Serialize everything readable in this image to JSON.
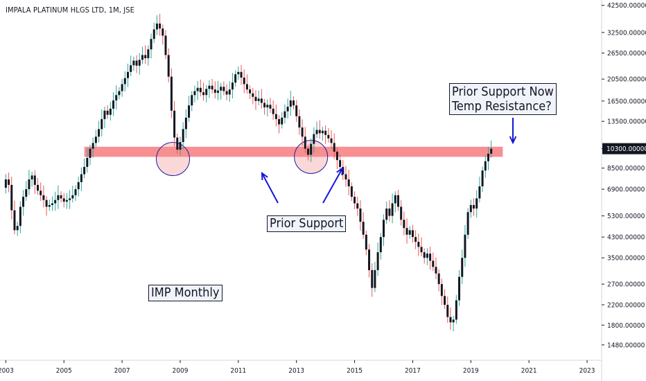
{
  "chart_data": {
    "type": "candlestick",
    "title": "IMPALA PLATINUM HLGS LTD, 1M, JSE",
    "scale": "log",
    "ylim": [
      1400,
      43000
    ],
    "x_range": [
      2002.8,
      2023.5
    ],
    "y_ticks": [
      "42500.00000",
      "32500.00000",
      "26500.00000",
      "20500.00000",
      "16500.00000",
      "13500.00000",
      "10300.00000",
      "8500.00000",
      "6900.00000",
      "5300.00000",
      "4300.00000",
      "3500.00000",
      "2700.00000",
      "2200.00000",
      "1800.00000",
      "1480.00000"
    ],
    "y_tick_values": [
      42500,
      32500,
      26500,
      20500,
      16500,
      13500,
      10300,
      8500,
      6900,
      5300,
      4300,
      3500,
      2700,
      2200,
      1800,
      1480
    ],
    "last_price_label": "10300.00000",
    "last_price": 10300,
    "x_ticks": [
      "2003",
      "2005",
      "2007",
      "2009",
      "2011",
      "2013",
      "2015",
      "2017",
      "2019",
      "2021",
      "2023"
    ],
    "x_tick_values": [
      2003,
      2005,
      2007,
      2009,
      2011,
      2013,
      2015,
      2017,
      2019,
      2021,
      2023
    ],
    "up_color": "#26a69a",
    "down_color": "#ef5350",
    "body_color": "#131722",
    "resistance_band": {
      "low": 9500,
      "high": 10500,
      "from": 2005.7,
      "to": 2020.1,
      "color": "#f77c80"
    },
    "circles": [
      {
        "x": 2008.75,
        "y": 9300
      },
      {
        "x": 2013.5,
        "y": 9500
      }
    ],
    "monthly_close": [
      [
        2002.9,
        7000
      ],
      [
        2003.0,
        7600
      ],
      [
        2003.1,
        7200
      ],
      [
        2003.2,
        5600
      ],
      [
        2003.3,
        4600
      ],
      [
        2003.4,
        4800
      ],
      [
        2003.5,
        5800
      ],
      [
        2003.6,
        6400
      ],
      [
        2003.7,
        6900
      ],
      [
        2003.8,
        7600
      ],
      [
        2003.9,
        7900
      ],
      [
        2004.0,
        7200
      ],
      [
        2004.1,
        6800
      ],
      [
        2004.2,
        6500
      ],
      [
        2004.3,
        6200
      ],
      [
        2004.4,
        5800
      ],
      [
        2004.5,
        5900
      ],
      [
        2004.6,
        6000
      ],
      [
        2004.7,
        6200
      ],
      [
        2004.8,
        6500
      ],
      [
        2004.9,
        6300
      ],
      [
        2005.0,
        6100
      ],
      [
        2005.1,
        6200
      ],
      [
        2005.2,
        6300
      ],
      [
        2005.3,
        6500
      ],
      [
        2005.4,
        6900
      ],
      [
        2005.5,
        7400
      ],
      [
        2005.6,
        8000
      ],
      [
        2005.7,
        8600
      ],
      [
        2005.8,
        9400
      ],
      [
        2005.9,
        10300
      ],
      [
        2006.0,
        10900
      ],
      [
        2006.1,
        11600
      ],
      [
        2006.2,
        12500
      ],
      [
        2006.3,
        13800
      ],
      [
        2006.4,
        15000
      ],
      [
        2006.5,
        14400
      ],
      [
        2006.6,
        15300
      ],
      [
        2006.7,
        16600
      ],
      [
        2006.8,
        17500
      ],
      [
        2006.9,
        18200
      ],
      [
        2007.0,
        19500
      ],
      [
        2007.1,
        20700
      ],
      [
        2007.2,
        22000
      ],
      [
        2007.3,
        23500
      ],
      [
        2007.4,
        24600
      ],
      [
        2007.5,
        23400
      ],
      [
        2007.6,
        24800
      ],
      [
        2007.7,
        26000
      ],
      [
        2007.8,
        25200
      ],
      [
        2007.9,
        27500
      ],
      [
        2008.0,
        30500
      ],
      [
        2008.1,
        33500
      ],
      [
        2008.2,
        35500
      ],
      [
        2008.3,
        33800
      ],
      [
        2008.4,
        31500
      ],
      [
        2008.5,
        26000
      ],
      [
        2008.6,
        21000
      ],
      [
        2008.7,
        15000
      ],
      [
        2008.8,
        11500
      ],
      [
        2008.9,
        10200
      ],
      [
        2009.0,
        11000
      ],
      [
        2009.1,
        12500
      ],
      [
        2009.2,
        14000
      ],
      [
        2009.3,
        15800
      ],
      [
        2009.4,
        17500
      ],
      [
        2009.5,
        18200
      ],
      [
        2009.6,
        18800
      ],
      [
        2009.7,
        18000
      ],
      [
        2009.8,
        17500
      ],
      [
        2009.9,
        18600
      ],
      [
        2010.0,
        19200
      ],
      [
        2010.1,
        18500
      ],
      [
        2010.2,
        17900
      ],
      [
        2010.3,
        18300
      ],
      [
        2010.4,
        19000
      ],
      [
        2010.5,
        18200
      ],
      [
        2010.6,
        17600
      ],
      [
        2010.7,
        18500
      ],
      [
        2010.8,
        19800
      ],
      [
        2010.9,
        21500
      ],
      [
        2011.0,
        22000
      ],
      [
        2011.1,
        20800
      ],
      [
        2011.2,
        19500
      ],
      [
        2011.3,
        18500
      ],
      [
        2011.4,
        17800
      ],
      [
        2011.5,
        17200
      ],
      [
        2011.6,
        16500
      ],
      [
        2011.7,
        16900
      ],
      [
        2011.8,
        16200
      ],
      [
        2011.9,
        15500
      ],
      [
        2012.0,
        15900
      ],
      [
        2012.1,
        15300
      ],
      [
        2012.2,
        14500
      ],
      [
        2012.3,
        13800
      ],
      [
        2012.4,
        13100
      ],
      [
        2012.5,
        14000
      ],
      [
        2012.6,
        14900
      ],
      [
        2012.7,
        15600
      ],
      [
        2012.8,
        16600
      ],
      [
        2012.9,
        15800
      ],
      [
        2013.0,
        14200
      ],
      [
        2013.1,
        12700
      ],
      [
        2013.2,
        11600
      ],
      [
        2013.3,
        10300
      ],
      [
        2013.4,
        9700
      ],
      [
        2013.5,
        10800
      ],
      [
        2013.6,
        11900
      ],
      [
        2013.7,
        12400
      ],
      [
        2013.8,
        12000
      ],
      [
        2013.9,
        12300
      ],
      [
        2014.0,
        11800
      ],
      [
        2014.1,
        11400
      ],
      [
        2014.2,
        10900
      ],
      [
        2014.3,
        10000
      ],
      [
        2014.4,
        9200
      ],
      [
        2014.5,
        8600
      ],
      [
        2014.6,
        8000
      ],
      [
        2014.7,
        7600
      ],
      [
        2014.8,
        7100
      ],
      [
        2014.9,
        6400
      ],
      [
        2015.0,
        6000
      ],
      [
        2015.1,
        5700
      ],
      [
        2015.2,
        5000
      ],
      [
        2015.3,
        4400
      ],
      [
        2015.4,
        3800
      ],
      [
        2015.5,
        3100
      ],
      [
        2015.6,
        2600
      ],
      [
        2015.7,
        3100
      ],
      [
        2015.8,
        3700
      ],
      [
        2015.9,
        4300
      ],
      [
        2016.0,
        5100
      ],
      [
        2016.1,
        5700
      ],
      [
        2016.2,
        5300
      ],
      [
        2016.3,
        6000
      ],
      [
        2016.4,
        6500
      ],
      [
        2016.5,
        5800
      ],
      [
        2016.6,
        5100
      ],
      [
        2016.7,
        4700
      ],
      [
        2016.8,
        4400
      ],
      [
        2016.9,
        4600
      ],
      [
        2017.0,
        4300
      ],
      [
        2017.1,
        4100
      ],
      [
        2017.2,
        3900
      ],
      [
        2017.3,
        3700
      ],
      [
        2017.4,
        3500
      ],
      [
        2017.5,
        3650
      ],
      [
        2017.6,
        3400
      ],
      [
        2017.7,
        3200
      ],
      [
        2017.8,
        3000
      ],
      [
        2017.9,
        2700
      ],
      [
        2018.0,
        2400
      ],
      [
        2018.1,
        2200
      ],
      [
        2018.2,
        1950
      ],
      [
        2018.3,
        1850
      ],
      [
        2018.4,
        1900
      ],
      [
        2018.5,
        2300
      ],
      [
        2018.6,
        2900
      ],
      [
        2018.7,
        3500
      ],
      [
        2018.8,
        4400
      ],
      [
        2018.9,
        5500
      ],
      [
        2019.0,
        5900
      ],
      [
        2019.1,
        5700
      ],
      [
        2019.2,
        6300
      ],
      [
        2019.3,
        7100
      ],
      [
        2019.4,
        8300
      ],
      [
        2019.5,
        9100
      ],
      [
        2019.6,
        9800
      ],
      [
        2019.7,
        10300
      ]
    ]
  },
  "annotations": {
    "prior_support": "Prior Support",
    "resistance_line1": "Prior Support Now",
    "resistance_line2": "Temp Resistance?",
    "monthly_label": "IMP Monthly"
  }
}
